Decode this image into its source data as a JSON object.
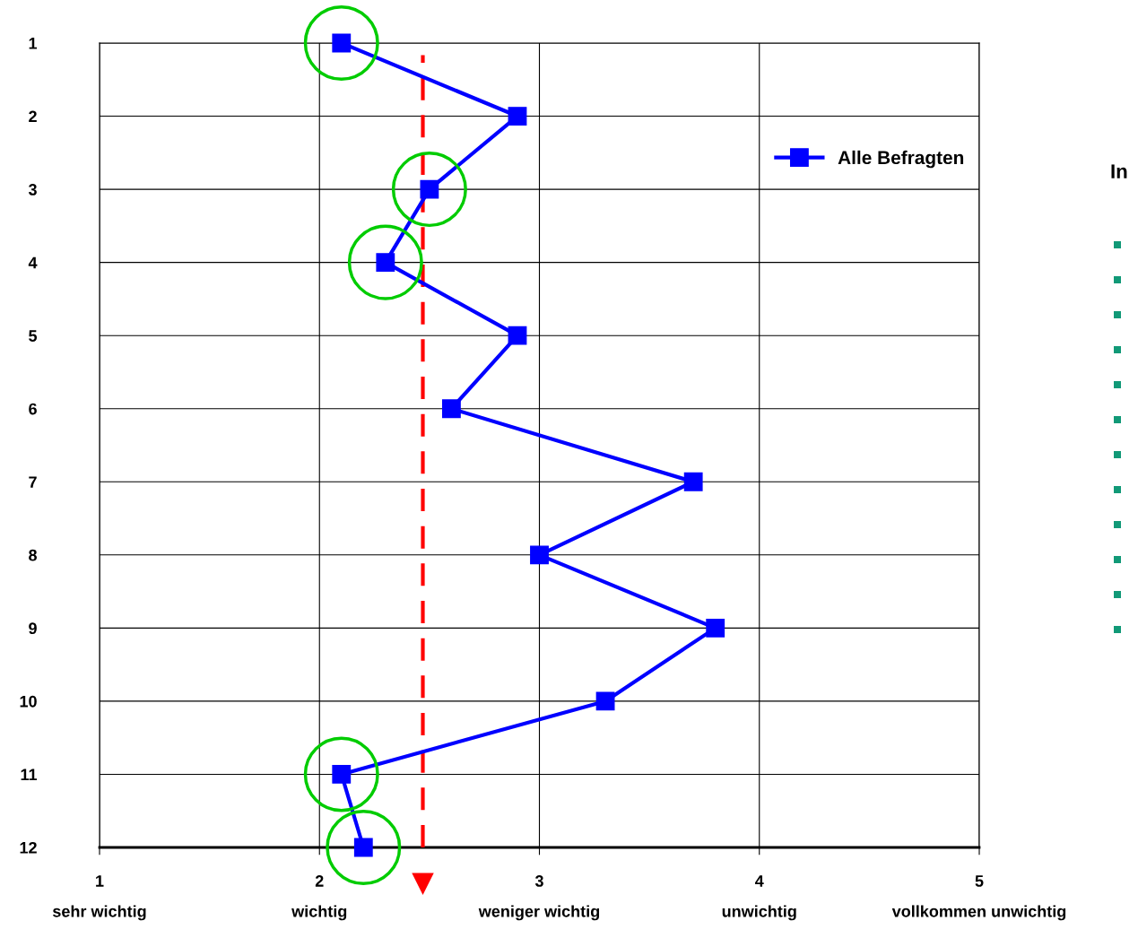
{
  "chart_data": {
    "type": "line",
    "orientation": "horizontal",
    "categories": [
      "1",
      "2",
      "3",
      "4",
      "5",
      "6",
      "7",
      "8",
      "9",
      "10",
      "11",
      "12"
    ],
    "series": [
      {
        "name": "Alle Befragten",
        "color": "#0000ff",
        "values": [
          2.1,
          2.9,
          2.5,
          2.3,
          2.9,
          2.6,
          3.7,
          3.0,
          3.8,
          3.3,
          2.1,
          2.2
        ]
      }
    ],
    "xlim": [
      1,
      5
    ],
    "xticks": [
      {
        "value": 1,
        "label": "1\nsehr wichtig"
      },
      {
        "value": 2,
        "label": "2\nwichtig"
      },
      {
        "value": 3,
        "label": "3\nweniger wichtig"
      },
      {
        "value": 4,
        "label": "4\nunwichtig"
      },
      {
        "value": 5,
        "label": "5\nvollkommen unwichtig"
      }
    ],
    "ref_lines": [
      {
        "axis": "x",
        "value": 2.47,
        "color": "#ff0000",
        "line_style": "dashed"
      }
    ],
    "annotations": [
      "In"
    ],
    "grid": true,
    "legend": "top right",
    "marker": "square",
    "line_style": "solid"
  }
}
